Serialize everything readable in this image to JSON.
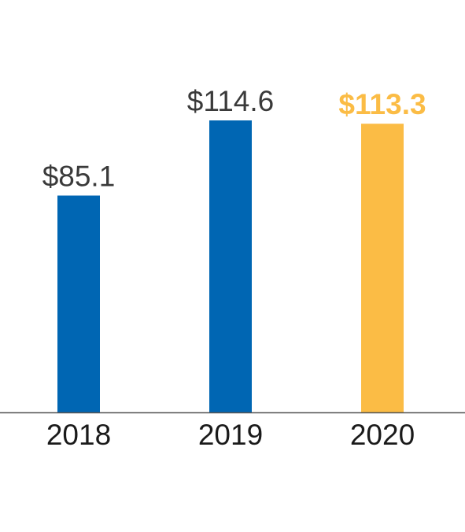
{
  "chart_data": {
    "type": "bar",
    "title": "",
    "xlabel": "",
    "ylabel": "",
    "categories": [
      "2018",
      "2019",
      "2020"
    ],
    "values": [
      85.1,
      114.6,
      113.3
    ],
    "data_labels": [
      "$85.1",
      "$114.6",
      "$113.3"
    ],
    "ylim": [
      0,
      114.6
    ],
    "grid": false,
    "legend": "none",
    "highlight_index": 2
  },
  "colors": {
    "bar": "#0066b3",
    "highlight_bar": "#fbbc45",
    "label_text": "#3a3a3a",
    "highlight_label": "#fbbc45",
    "tick_text": "#1a1a1a",
    "axis": "#555555"
  }
}
